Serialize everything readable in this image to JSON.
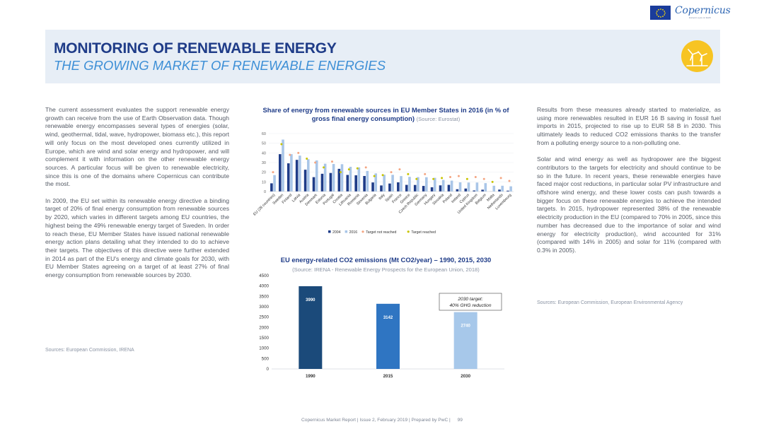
{
  "header": {
    "title": "MONITORING OF RENEWABLE ENERGY",
    "subtitle": "THE GROWING MARKET OF RENEWABLE ENERGIES",
    "logo_text": "Copernicus",
    "logo_subtext": "Europe's eyes on Earth"
  },
  "left_column": {
    "p1": "The current assessment evaluates the support renewable energy growth can receive from the use of Earth Observation data. Though renewable energy encompasses several types of energies (solar, wind, geothermal, tidal, wave, hydropower, biomass etc.), this report will only focus on the most developed ones currently utilized in Europe, which are wind and solar energy and hydropower, and will complement it with information on the other renewable energy sources. A particular focus will be given to renewable electricity, since this is one of the domains where Copernicus can contribute the most.",
    "p2": "In 2009, the EU set within its renewable energy directive a binding target of 20% of  final energy consumption from renewable sources by 2020, which varies in different targets among EU countries, the highest being the 49% renewable energy target of Sweden. In order to reach these, EU Member States have issued national renewable energy action plans detailing what they intended to do to achieve their targets. The objectives of this directive were further extended in 2014 as part of the EU's energy and climate goals for 2030, with EU Member States agreeing on a target of at least 27% of  final energy consumption from renewable sources by 2030.",
    "source": "Sources: European Commission, IRENA"
  },
  "right_column": {
    "p1": "Results from these measures already started to materialize, as using more renewables resulted in EUR 16 B saving in fossil fuel imports in 2015, projected to rise up to EUR 58 B in 2030. This ultimately leads to reduced CO2 emissions thanks to the transfer from a polluting energy source to a non-polluting one.",
    "p2": "Solar and wind energy as well as hydropower are the biggest contributors to the targets for electricity and should continue to be so in the future. In recent years, these renewable energies have faced major cost reductions, in particular solar PV infrastructure and offshore wind energy, and these lower costs can push towards a bigger focus on these renewable energies to achieve the intended targets. In 2015, hydropower represented 38% of the renewable electricity production in the EU (compared to 70% in 2005, since this number has decreased due to the importance of solar and wind energy for electricity production), wind accounted for 31% (compared with 14% in 2005) and solar for 11% (compared with 0.3% in 2005).",
    "source": "Sources: European Commission, European Environmental Agency"
  },
  "chart_data": [
    {
      "type": "bar",
      "title": "Share of energy from renewable sources in EU Member States in 2016 (in % of gross final energy consumption)",
      "source_note": "(Source: Eurostat)",
      "categories": [
        "EU (28 countries)",
        "Sweden",
        "Finland",
        "Latvia",
        "Austria",
        "Denmark",
        "Estonia",
        "Portugal",
        "Croatia",
        "Lithuania",
        "Romania",
        "Slovenia",
        "Bulgaria",
        "Italy",
        "Spain",
        "France",
        "Greece",
        "Czech Republic",
        "Germany",
        "Hungary",
        "Slovakia",
        "Poland",
        "Ireland",
        "Cyprus",
        "United Kingdom",
        "Belgium",
        "Malta",
        "Netherlands",
        "Luxembourg"
      ],
      "series": [
        {
          "name": "2004",
          "color": "#1f3c88",
          "values": [
            8.5,
            38.7,
            29.2,
            32.8,
            22.6,
            14.9,
            18.4,
            19.2,
            23.5,
            17.2,
            16.8,
            16.1,
            9.4,
            6.3,
            8.3,
            9.5,
            6.9,
            6.8,
            5.8,
            4.4,
            6.4,
            6.9,
            2.4,
            3.1,
            1.1,
            1.9,
            0.1,
            2.0,
            0.9
          ]
        },
        {
          "name": "2016",
          "color": "#a9c6e8",
          "values": [
            17.0,
            53.8,
            38.7,
            37.2,
            33.5,
            32.2,
            28.8,
            28.5,
            28.3,
            25.6,
            25.0,
            21.3,
            18.8,
            17.4,
            17.3,
            16.0,
            15.2,
            14.9,
            14.8,
            14.2,
            12.0,
            11.3,
            9.5,
            9.3,
            9.3,
            8.7,
            6.0,
            6.0,
            5.4
          ]
        },
        {
          "name": "Target not reached",
          "color": "#f4a582",
          "values": [
            20,
            null,
            38,
            40,
            null,
            30,
            null,
            31,
            null,
            null,
            null,
            25,
            null,
            null,
            20,
            23,
            null,
            null,
            18,
            null,
            null,
            15,
            16,
            null,
            15,
            13,
            null,
            14,
            11
          ]
        },
        {
          "name": "Target reached",
          "color": "#c8c400",
          "values": [
            null,
            49,
            null,
            null,
            34,
            null,
            25,
            null,
            20,
            23,
            24,
            null,
            16,
            17,
            null,
            null,
            18,
            13,
            null,
            13,
            14,
            null,
            null,
            13,
            null,
            null,
            10,
            null,
            null
          ]
        }
      ],
      "ylim": [
        0,
        60
      ],
      "yticks": [
        "0",
        "10",
        "20",
        "30",
        "40",
        "50",
        "60"
      ],
      "legend_position": "bottom"
    },
    {
      "type": "bar",
      "title": "EU energy-related CO2 emissions (Mt CO2/year) – 1990, 2015, 2030",
      "source_note": "(Source: IRENA - Renewable Energy Prospects for the European Union, 2018)",
      "categories": [
        "1990",
        "2015",
        "2030"
      ],
      "values": [
        3990,
        3142,
        2740
      ],
      "value_labels": [
        "3990",
        "3142",
        "2740"
      ],
      "colors": [
        "#1b4a7a",
        "#2f75c2",
        "#a7c8ea"
      ],
      "ylim": [
        0,
        4500
      ],
      "yticks": [
        "0",
        "500",
        "1000",
        "1500",
        "2000",
        "2500",
        "3000",
        "3500",
        "4000",
        "4500"
      ],
      "annotation": {
        "line1": "2030 target:",
        "line2": "40% GHG reduction"
      }
    }
  ],
  "footer": {
    "text": "Copernicus Market Report  |  Issue 2, February 2019 | Prepared by PwC |",
    "page": "99"
  }
}
